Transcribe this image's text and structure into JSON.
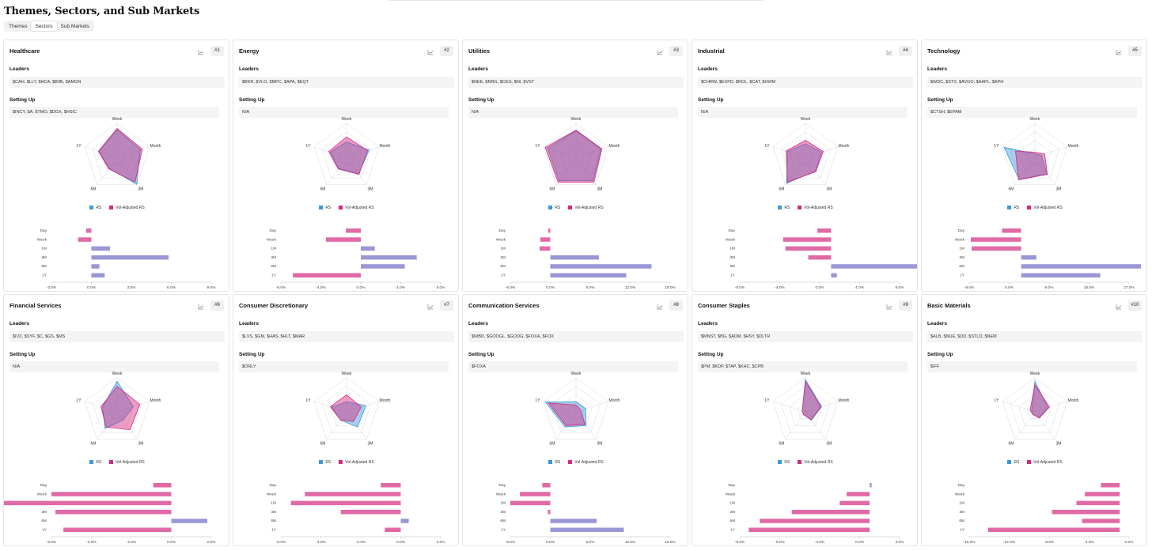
{
  "page": {
    "title": "Themes, Sectors, and Sub Markets"
  },
  "tabs": [
    {
      "label": "Themes",
      "active": false
    },
    {
      "label": "Sectors",
      "active": true
    },
    {
      "label": "Sub Markets",
      "active": false
    }
  ],
  "labels": {
    "leaders": "Leaders",
    "setting_up": "Setting Up",
    "legend_rs": "RS",
    "legend_vol": "Vol-Adjusted RS"
  },
  "colors": {
    "rs": "#3a9ad9",
    "vol": "#d7287f",
    "bar_pos": "#9a97d6",
    "bar_neg": "#e06aa6",
    "overlap": "#9581c4"
  },
  "radar_axes": [
    "Week",
    "Month",
    "3M",
    "6M",
    "1Y"
  ],
  "bar_labels": [
    "Day",
    "Week",
    "1M",
    "3M",
    "6M",
    "1Y"
  ],
  "sectors": [
    {
      "name": "Healthcare",
      "rank": "#1",
      "leaders": "$CAH, $LLY, $HCA, $BIIB, $AMGN",
      "setting_up": "$INCY, $A, $TMO, $DGX, $HSIC",
      "rs": [
        0.82,
        0.72,
        0.98,
        0.4,
        0.55
      ],
      "vol": [
        0.85,
        0.78,
        0.9,
        0.42,
        0.58
      ],
      "bars": [
        -0.4,
        -1.0,
        1.4,
        5.8,
        0.6,
        1.0
      ],
      "ticks": [
        "-3.0%",
        "0.0%",
        "3.0%",
        "6.0%",
        "9.0%"
      ],
      "range": [
        -3,
        9
      ]
    },
    {
      "name": "Energy",
      "rank": "#2",
      "leaders": "$BKR, $VLO, $MPC, $APA, $EQT",
      "setting_up": "N/A",
      "rs": [
        0.45,
        0.7,
        0.6,
        0.4,
        0.5
      ],
      "vol": [
        0.6,
        0.65,
        0.62,
        0.42,
        0.55
      ],
      "bars": [
        -1.5,
        -3.5,
        1.4,
        5.6,
        4.4,
        -6.8
      ],
      "ticks": [
        "-8.0%",
        "-4.0%",
        "0.0%",
        "4.0%",
        "8.0%"
      ],
      "range": [
        -8,
        8
      ]
    },
    {
      "name": "Utilities",
      "rank": "#3",
      "leaders": "$NEE, $NRG, $CEG, $NI, $VST",
      "setting_up": "N/A",
      "rs": [
        0.78,
        0.78,
        0.85,
        0.85,
        0.88
      ],
      "vol": [
        0.8,
        0.8,
        0.9,
        0.9,
        0.95
      ],
      "bars": [
        -0.3,
        -1.5,
        -1.6,
        7.3,
        15.2,
        11.4
      ],
      "ticks": [
        "-6.0%",
        "0.0%",
        "6.0%",
        "12.0%",
        "18.0%"
      ],
      "range": [
        -6,
        18
      ]
    },
    {
      "name": "Industrial",
      "rank": "#4",
      "leaders": "$CHRW, $EXPD, $ROL, $CAT, $HWM",
      "setting_up": "N/A",
      "rs": [
        0.4,
        0.5,
        0.5,
        0.95,
        0.55
      ],
      "vol": [
        0.5,
        0.55,
        0.52,
        0.9,
        0.6
      ],
      "bars": [
        -1.2,
        -4.2,
        -4.0,
        -2.0,
        7.8,
        0.5
      ],
      "ticks": [
        "-8.0%",
        "-4.0%",
        "0.0%",
        "4.0%",
        "8.0%"
      ],
      "range": [
        -8,
        6
      ]
    },
    {
      "name": "Technology",
      "rank": "#5",
      "leaders": "$WDC, $STX, $AVGO, $AAPL, $APH",
      "setting_up": "$CTSH, $EPAM",
      "rs": [
        0.1,
        0.2,
        0.6,
        0.8,
        0.95
      ],
      "vol": [
        0.15,
        0.3,
        0.62,
        0.82,
        0.6
      ],
      "bars": [
        -4.8,
        -12.6,
        -12.4,
        3.8,
        30.0,
        19.8
      ],
      "ticks": [
        "-9.0%",
        "0.0%",
        "9.0%",
        "18.0%",
        "27.0%"
      ],
      "range": [
        -13,
        27
      ]
    },
    {
      "name": "Financial Services",
      "rank": "#6",
      "leaders": "$IVZ, $SYF, $C, $GS, $MS",
      "setting_up": "N/A",
      "rs": [
        0.9,
        0.5,
        0.3,
        0.6,
        0.45
      ],
      "vol": [
        0.75,
        0.7,
        0.65,
        0.55,
        0.5
      ],
      "bars": [
        -0.9,
        -6.0,
        -9.2,
        -5.8,
        1.8,
        -5.4
      ],
      "ticks": [
        "-6.0%",
        "-4.0%",
        "-2.0%",
        "0.0%",
        "2.0%"
      ],
      "range": [
        -6,
        2
      ]
    },
    {
      "name": "Consumer Discretionary",
      "rank": "#7",
      "leaders": "$LVS, $GM, $HAS, $HLT, $MAR",
      "setting_up": "$ORLY",
      "rs": [
        0.3,
        0.6,
        0.55,
        0.3,
        0.45
      ],
      "vol": [
        0.5,
        0.45,
        0.35,
        0.3,
        0.5
      ],
      "bars": [
        -1.0,
        -4.8,
        -5.5,
        -3.0,
        0.4,
        -0.8
      ],
      "ticks": [
        "-6.0%",
        "-4.0%",
        "-2.0%",
        "0.0%",
        "2.0%"
      ],
      "range": [
        -6,
        2
      ]
    },
    {
      "name": "Communication Services",
      "rank": "#8",
      "leaders": "$WBD, $GOOGL, $GOOG, $FOXA, $FOX",
      "setting_up": "$FOXA",
      "rs": [
        0.3,
        0.3,
        0.5,
        0.55,
        0.95
      ],
      "vol": [
        0.2,
        0.15,
        0.45,
        0.5,
        0.85
      ],
      "bars": [
        -1.0,
        -3.8,
        -5.0,
        -0.3,
        5.8,
        9.2
      ],
      "ticks": [
        "-5.0%",
        "0.0%",
        "5.0%",
        "10.0%",
        "15.0%"
      ],
      "range": [
        -5,
        15
      ]
    },
    {
      "name": "Consumer Staples",
      "rank": "#9",
      "leaders": "$MNST, $BG, $ADM, $HSY, $DLTR",
      "setting_up": "$PM, $KDP, $TAP, $KHC, $CPB",
      "rs": [
        0.95,
        0.5,
        0.3,
        0.1,
        0.1
      ],
      "vol": [
        0.9,
        0.48,
        0.28,
        0.1,
        0.1
      ],
      "bars": [
        0.2,
        -2.3,
        -3.0,
        -7.8,
        -11.0,
        -12.1
      ],
      "ticks": [
        "-9.0%",
        "-6.0%",
        "-3.0%",
        "0.0%",
        "3.0%"
      ],
      "range": [
        -13,
        3
      ]
    },
    {
      "name": "Basic Materials",
      "rank": "#10",
      "leaders": "$ALB, $NUE, $DD, $STLD, $NEM",
      "setting_up": "$IFF",
      "rs": [
        0.9,
        0.4,
        0.2,
        0.1,
        0.1
      ],
      "vol": [
        0.8,
        0.45,
        0.22,
        0.1,
        0.15
      ],
      "bars": [
        -2.0,
        -3.7,
        -4.6,
        -7.2,
        -4.0,
        -14.0
      ],
      "ticks": [
        "-16.0%",
        "-12.0%",
        "-8.0%",
        "-4.0%",
        "0.0%"
      ],
      "range": [
        -16,
        1
      ]
    }
  ]
}
